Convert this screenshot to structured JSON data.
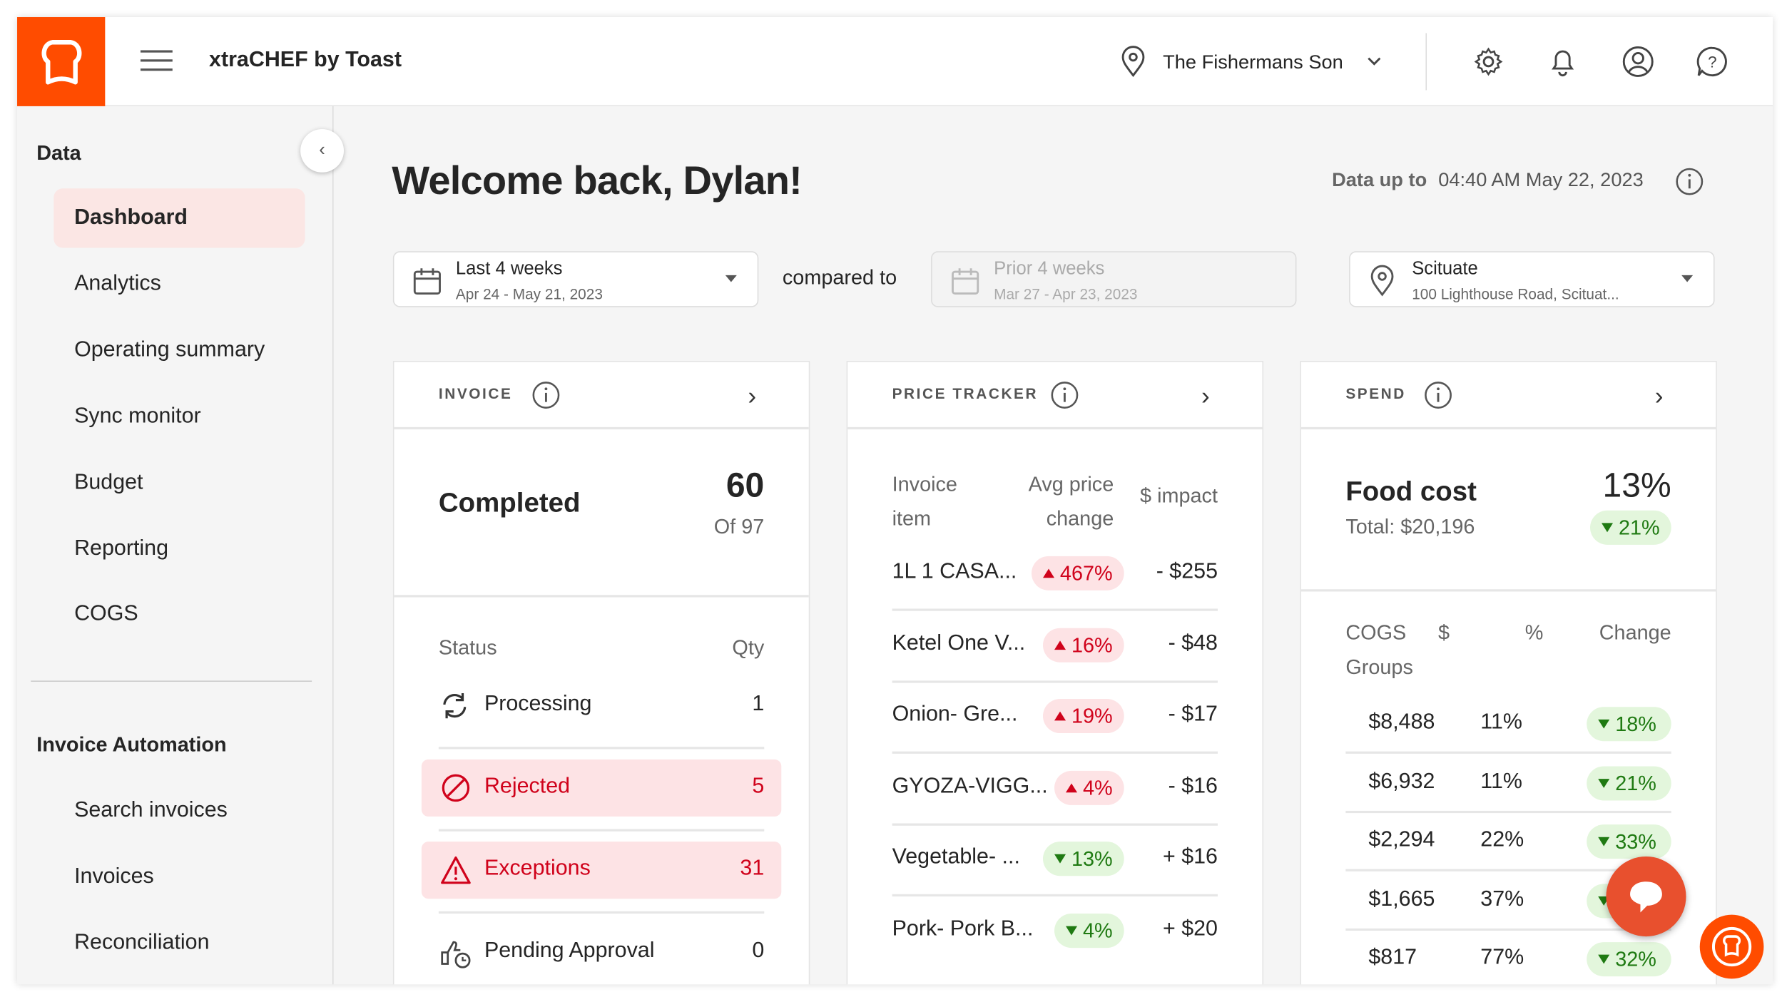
{
  "header": {
    "app_title": "xtraCHEF by Toast",
    "location": "The Fishermans Son",
    "brand_color": "#FF4C00"
  },
  "sidebar": {
    "sections": [
      {
        "title": "Data",
        "items": [
          {
            "label": "Dashboard",
            "active": true
          },
          {
            "label": "Analytics"
          },
          {
            "label": "Operating summary"
          },
          {
            "label": "Sync monitor"
          },
          {
            "label": "Budget"
          },
          {
            "label": "Reporting"
          },
          {
            "label": "COGS"
          }
        ]
      },
      {
        "title": "Invoice Automation",
        "items": [
          {
            "label": "Search invoices"
          },
          {
            "label": "Invoices"
          },
          {
            "label": "Reconciliation"
          }
        ]
      }
    ]
  },
  "main": {
    "welcome": "Welcome back, Dylan!",
    "data_up_to_label": "Data up to",
    "data_up_to_value": "04:40 AM May 22, 2023",
    "filters": {
      "period": {
        "label": "Last 4 weeks",
        "range": "Apr 24 - May 21, 2023"
      },
      "compared_to": "compared to",
      "compare": {
        "label": "Prior 4 weeks",
        "range": "Mar 27 - Apr 23, 2023"
      },
      "location": {
        "label": "Scituate",
        "address": "100 Lighthouse Road, Scituat..."
      }
    },
    "invoice": {
      "title": "INVOICE",
      "completed_label": "Completed",
      "completed": "60",
      "of_total": "Of 97",
      "status_header": "Status",
      "qty_header": "Qty",
      "statuses": [
        {
          "label": "Processing",
          "qty": "1",
          "icon": "refresh-icon"
        },
        {
          "label": "Rejected",
          "qty": "5",
          "icon": "ban-icon"
        },
        {
          "label": "Exceptions",
          "qty": "31",
          "icon": "warning-icon"
        },
        {
          "label": "Pending Approval",
          "qty": "0",
          "icon": "approval-icon"
        }
      ]
    },
    "price_tracker": {
      "title": "PRICE TRACKER",
      "col_item_1": "Invoice",
      "col_item_2": "item",
      "col_change_1": "Avg price",
      "col_change_2": "change",
      "col_impact": "$ impact",
      "rows": [
        {
          "item": "1L 1 CASA...",
          "change": "467%",
          "dir": "up",
          "impact": "- $255"
        },
        {
          "item": "Ketel One V...",
          "change": "16%",
          "dir": "up",
          "impact": "- $48"
        },
        {
          "item": "Onion- Gre...",
          "change": "19%",
          "dir": "up",
          "impact": "- $17"
        },
        {
          "item": "GYOZA-VIGG...",
          "change": "4%",
          "dir": "up",
          "impact": "- $16"
        },
        {
          "item": "Vegetable- ...",
          "change": "13%",
          "dir": "down",
          "impact": "+ $16"
        },
        {
          "item": "Pork- Pork B...",
          "change": "4%",
          "dir": "down",
          "impact": "+ $20"
        }
      ]
    },
    "spend": {
      "title": "SPEND",
      "food_cost_label": "Food cost",
      "total": "Total: $20,196",
      "food_cost_pct": "13%",
      "food_cost_change": "21%",
      "col_group_1": "COGS",
      "col_group_2": "Groups",
      "col_dollars": "$",
      "col_pct": "%",
      "col_change": "Change",
      "rows": [
        {
          "dollars": "$8,488",
          "pct": "11%",
          "change": "18%"
        },
        {
          "dollars": "$6,932",
          "pct": "11%",
          "change": "21%"
        },
        {
          "dollars": "$2,294",
          "pct": "22%",
          "change": "33%"
        },
        {
          "dollars": "$1,665",
          "pct": "37%",
          "change": ""
        },
        {
          "dollars": "$817",
          "pct": "77%",
          "change": "32%"
        }
      ]
    }
  }
}
